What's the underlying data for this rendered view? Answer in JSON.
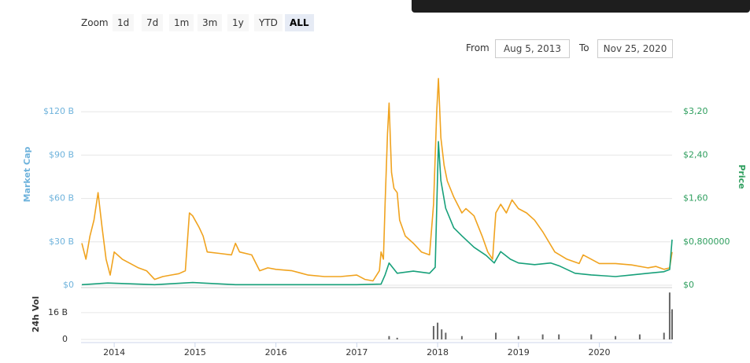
{
  "controls": {
    "zoom_label": "Zoom",
    "buttons": [
      "1d",
      "7d",
      "1m",
      "3m",
      "1y",
      "YTD",
      "ALL"
    ],
    "active": "ALL",
    "from_label": "From",
    "from": "Aug 5, 2013",
    "to_label": "To",
    "to": "Nov 25, 2020"
  },
  "chart_data": [
    {
      "type": "line",
      "xlim": [
        2013.59,
        2020.9
      ],
      "xticks": [
        2014,
        2015,
        2016,
        2017,
        2018,
        2019,
        2020
      ],
      "ylim": [
        0,
        150
      ],
      "yticks": [
        {
          "value": 0,
          "label": "$0"
        },
        {
          "value": 30,
          "label": "$30 B"
        },
        {
          "value": 60,
          "label": "$60 B"
        },
        {
          "value": 90,
          "label": "$90 B"
        },
        {
          "value": 120,
          "label": "$120 B"
        }
      ],
      "y2lim": [
        0,
        4.0
      ],
      "y2ticks": [
        {
          "value": 0,
          "label": "$0"
        },
        {
          "value": 0.8,
          "label": "$0,800000"
        },
        {
          "value": 1.6,
          "label": "$1,60"
        },
        {
          "value": 2.4,
          "label": "$2,40"
        },
        {
          "value": 3.2,
          "label": "$3,20"
        }
      ],
      "grid": true,
      "series": [
        {
          "name": "Market Cap",
          "color": "#f0a31f",
          "x": [
            2013.6,
            2013.65,
            2013.7,
            2013.75,
            2013.8,
            2013.85,
            2013.9,
            2013.95,
            2014.0,
            2014.1,
            2014.2,
            2014.3,
            2014.4,
            2014.5,
            2014.6,
            2014.7,
            2014.8,
            2014.88,
            2014.93,
            2014.97,
            2015.05,
            2015.1,
            2015.15,
            2015.3,
            2015.45,
            2015.5,
            2015.55,
            2015.7,
            2015.8,
            2015.9,
            2016.0,
            2016.2,
            2016.4,
            2016.6,
            2016.8,
            2017.0,
            2017.1,
            2017.2,
            2017.28,
            2017.3,
            2017.33,
            2017.35,
            2017.38,
            2017.4,
            2017.43,
            2017.46,
            2017.5,
            2017.53,
            2017.6,
            2017.7,
            2017.8,
            2017.9,
            2017.95,
            2017.99,
            2018.01,
            2018.04,
            2018.08,
            2018.12,
            2018.2,
            2018.3,
            2018.35,
            2018.45,
            2018.55,
            2018.62,
            2018.68,
            2018.72,
            2018.78,
            2018.85,
            2018.92,
            2019.0,
            2019.1,
            2019.2,
            2019.3,
            2019.45,
            2019.6,
            2019.75,
            2019.8,
            2019.9,
            2020.0,
            2020.2,
            2020.4,
            2020.6,
            2020.7,
            2020.8,
            2020.87,
            2020.9
          ],
          "values": [
            29,
            18,
            34,
            45,
            64,
            40,
            18,
            7,
            23,
            18,
            15,
            12,
            10,
            4,
            6,
            7,
            8,
            10,
            50,
            48,
            40,
            34,
            23,
            22,
            21,
            29,
            23,
            21,
            10,
            12,
            11,
            10,
            7,
            6,
            6,
            7,
            4,
            3,
            10,
            23,
            18,
            56,
            105,
            126,
            78,
            67,
            64,
            45,
            34,
            29,
            23,
            21,
            56,
            121,
            143,
            102,
            83,
            72,
            61,
            50,
            53,
            48,
            34,
            23,
            18,
            50,
            56,
            50,
            59,
            53,
            50,
            45,
            37,
            23,
            18,
            15,
            21,
            18,
            15,
            15,
            14,
            12,
            13,
            11,
            12,
            23
          ]
        },
        {
          "name": "Price",
          "color": "#17a07a",
          "axis": "y2",
          "x": [
            2013.6,
            2013.92,
            2014.5,
            2014.97,
            2015.5,
            2016.0,
            2016.5,
            2017.0,
            2017.3,
            2017.35,
            2017.4,
            2017.5,
            2017.7,
            2017.9,
            2017.97,
            2018.01,
            2018.04,
            2018.1,
            2018.2,
            2018.3,
            2018.45,
            2018.6,
            2018.7,
            2018.78,
            2018.9,
            2019.0,
            2019.2,
            2019.4,
            2019.5,
            2019.7,
            2019.9,
            2020.2,
            2020.4,
            2020.6,
            2020.8,
            2020.87,
            2020.9
          ],
          "values": [
            0.01,
            0.04,
            0.01,
            0.05,
            0.01,
            0.01,
            0.01,
            0.01,
            0.02,
            0.19,
            0.41,
            0.22,
            0.26,
            0.22,
            0.33,
            2.65,
            1.93,
            1.42,
            1.06,
            0.91,
            0.7,
            0.55,
            0.41,
            0.62,
            0.48,
            0.41,
            0.38,
            0.41,
            0.36,
            0.22,
            0.19,
            0.16,
            0.19,
            0.22,
            0.25,
            0.29,
            0.84
          ]
        }
      ]
    },
    {
      "type": "bar",
      "ylabel": "24h Vol",
      "color": "#666666",
      "xlim": [
        2013.59,
        2020.9
      ],
      "ylim": [
        0,
        30
      ],
      "yticks": [
        0,
        {
          "value": 16,
          "label": "16 B"
        }
      ],
      "x": [
        2017.4,
        2017.5,
        2017.95,
        2018.0,
        2018.05,
        2018.1,
        2018.3,
        2018.72,
        2019.0,
        2019.3,
        2019.5,
        2019.9,
        2020.2,
        2020.5,
        2020.8,
        2020.87,
        2020.9
      ],
      "values": [
        2,
        1,
        8,
        10,
        6,
        4,
        2,
        4,
        2,
        3,
        3,
        3,
        2,
        3,
        4,
        28,
        18
      ]
    }
  ]
}
